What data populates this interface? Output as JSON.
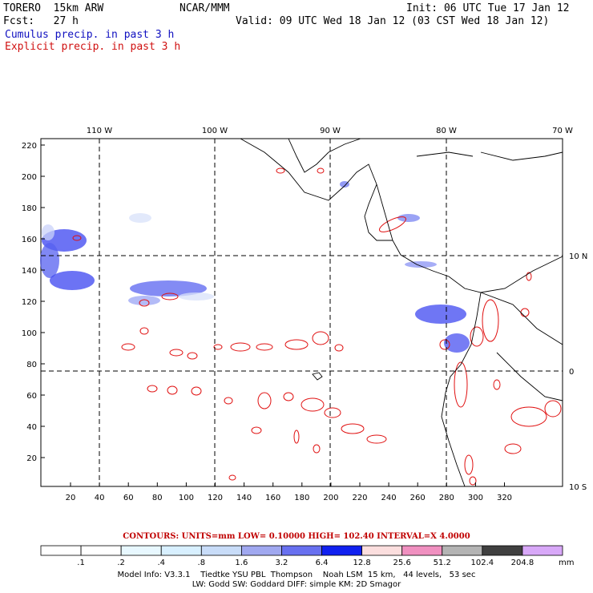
{
  "header": {
    "line1_left": "TORERO  15km ARW",
    "line1_mid": "NCAR/MMM",
    "line1_right": "Init: 06 UTC Tue 17 Jan 12",
    "line2_left": "Fcst:   27 h",
    "line2_right": "Valid: 09 UTC Wed 18 Jan 12 (03 CST Wed 18 Jan 12)",
    "legend_blue": "Cumulus precip. in past 3 h",
    "legend_red": "Explicit precip. in past 3 h"
  },
  "axes": {
    "top_lon_labels": [
      "110 W",
      "100 W",
      "90 W",
      "80 W",
      "70 W"
    ],
    "right_lat_labels": [
      "10 N",
      "0",
      "10 S"
    ],
    "left_ticks": [
      "220",
      "200",
      "180",
      "160",
      "140",
      "120",
      "100",
      "80",
      "60",
      "40",
      "20"
    ],
    "bottom_ticks": [
      "20",
      "40",
      "60",
      "80",
      "100",
      "120",
      "140",
      "160",
      "180",
      "200",
      "220",
      "240",
      "260",
      "280",
      "300",
      "320"
    ]
  },
  "contour_info": "CONTOURS:  UNITS=mm  LOW= 0.10000       HIGH=  102.40       INTERVAL=X  4.0000",
  "colorbar": {
    "unit": "mm",
    "levels": [
      ".1",
      ".2",
      ".4",
      ".8",
      "1.6",
      "3.2",
      "6.4",
      "12.8",
      "25.6",
      "51.2",
      "102.4",
      "204.8"
    ],
    "colors": [
      "#ffffff",
      "#ffffff",
      "#e8f8ff",
      "#d8f0ff",
      "#c8dcf8",
      "#a0a8f0",
      "#6870f0",
      "#1020f0",
      "#fbdede",
      "#f090c0",
      "#b4b4b4",
      "#404040",
      "#d8a8f8"
    ]
  },
  "model_info_line1": "Model Info: V3.3.1    Tiedtke YSU PBL  Thompson    Noah LSM  15 km,   44 levels,   53 sec",
  "model_info_line2": "LW: Godd SW: Goddard DIFF: simple KM: 2D Smagor"
}
